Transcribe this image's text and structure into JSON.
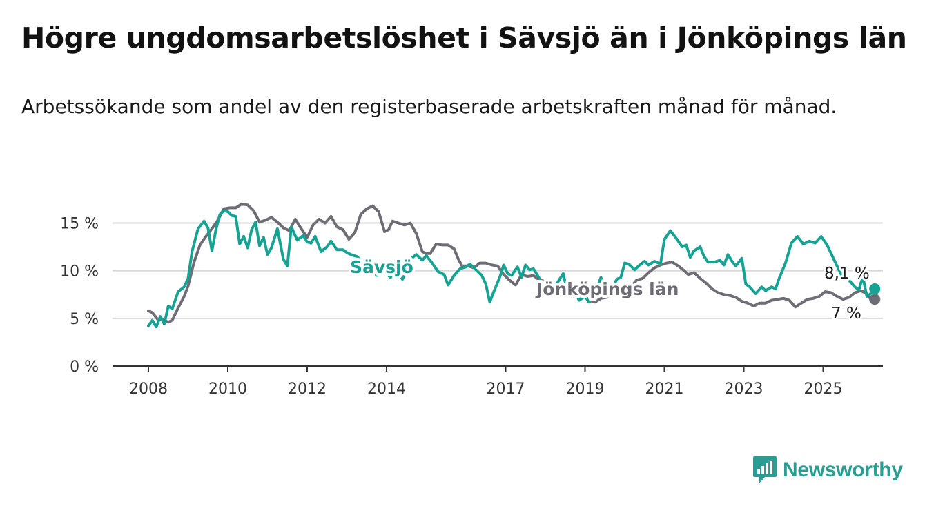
{
  "title": "Högre ungdomsarbetslöshet i Sävsjö än i Jönköpings län",
  "subtitle": "Arbetssökande som andel av den registerbaserade arbetskraften månad för månad.",
  "brand": {
    "name": "Newsworthy",
    "icon": "bar-chart-speech-bubble-icon",
    "color": "#2a9d92"
  },
  "chart_data": {
    "type": "line",
    "title": "Högre ungdomsarbetslöshet i Sävsjö än i Jönköpings län",
    "xlabel": "",
    "ylabel": "",
    "x_ticks": [
      "2008",
      "2010",
      "2012",
      "2014",
      "2017",
      "2019",
      "2021",
      "2023",
      "2025"
    ],
    "y_ticks": [
      "0 %",
      "5 %",
      "10 %",
      "15 %"
    ],
    "ylim": [
      0,
      18
    ],
    "xlim": [
      2007.2,
      2026.4
    ],
    "grid": true,
    "legend": "inline labels",
    "series": [
      {
        "name": "Sävsjö",
        "color": "#16a394",
        "end_label": "8,1 %",
        "points": [
          [
            2008,
            4.2
          ],
          [
            2008.1,
            4.8
          ],
          [
            2008.2,
            4.1
          ],
          [
            2008.3,
            5.2
          ],
          [
            2008.4,
            4.4
          ],
          [
            2008.5,
            6.3
          ],
          [
            2008.6,
            6.0
          ],
          [
            2008.75,
            7.8
          ],
          [
            2008.9,
            8.3
          ],
          [
            2009.0,
            9.2
          ],
          [
            2009.1,
            12.0
          ],
          [
            2009.25,
            14.4
          ],
          [
            2009.4,
            15.2
          ],
          [
            2009.5,
            14.5
          ],
          [
            2009.6,
            12.1
          ],
          [
            2009.7,
            14.3
          ],
          [
            2009.8,
            15.9
          ],
          [
            2009.9,
            16.3
          ],
          [
            2010.0,
            16.2
          ],
          [
            2010.1,
            15.8
          ],
          [
            2010.2,
            15.7
          ],
          [
            2010.3,
            12.8
          ],
          [
            2010.4,
            13.6
          ],
          [
            2010.5,
            12.4
          ],
          [
            2010.6,
            14.3
          ],
          [
            2010.7,
            15.1
          ],
          [
            2010.8,
            12.6
          ],
          [
            2010.9,
            13.5
          ],
          [
            2011.0,
            11.7
          ],
          [
            2011.1,
            12.4
          ],
          [
            2011.25,
            14.4
          ],
          [
            2011.4,
            11.2
          ],
          [
            2011.5,
            10.5
          ],
          [
            2011.6,
            14.6
          ],
          [
            2011.75,
            13.2
          ],
          [
            2011.9,
            13.7
          ],
          [
            2012.0,
            13.0
          ],
          [
            2012.1,
            12.9
          ],
          [
            2012.2,
            13.6
          ],
          [
            2012.35,
            12.0
          ],
          [
            2012.5,
            12.5
          ],
          [
            2012.6,
            13.1
          ],
          [
            2012.75,
            12.2
          ],
          [
            2012.9,
            12.2
          ],
          [
            2013.0,
            11.9
          ],
          [
            2013.1,
            11.7
          ],
          [
            2013.25,
            11.5
          ],
          [
            2013.4,
            10.9
          ],
          [
            2013.5,
            10.0
          ],
          [
            2013.6,
            10.7
          ],
          [
            2013.75,
            9.5
          ],
          [
            2013.9,
            9.8
          ],
          [
            2014.0,
            9.7
          ],
          [
            2014.1,
            9.3
          ],
          [
            2014.25,
            9.9
          ],
          [
            2014.4,
            9.1
          ],
          [
            2014.5,
            10.0
          ],
          [
            2014.6,
            11.2
          ],
          [
            2014.75,
            11.7
          ],
          [
            2014.9,
            11.1
          ],
          [
            2015.0,
            11.6
          ],
          [
            2015.15,
            10.8
          ],
          [
            2015.3,
            9.9
          ],
          [
            2015.45,
            9.6
          ],
          [
            2015.55,
            8.5
          ],
          [
            2015.7,
            9.5
          ],
          [
            2015.85,
            10.2
          ],
          [
            2016.0,
            10.4
          ],
          [
            2016.1,
            10.7
          ],
          [
            2016.25,
            10.1
          ],
          [
            2016.4,
            9.5
          ],
          [
            2016.5,
            8.6
          ],
          [
            2016.6,
            6.7
          ],
          [
            2016.7,
            7.8
          ],
          [
            2016.85,
            9.3
          ],
          [
            2016.95,
            10.6
          ],
          [
            2017.05,
            9.7
          ],
          [
            2017.15,
            9.5
          ],
          [
            2017.3,
            10.4
          ],
          [
            2017.4,
            9.3
          ],
          [
            2017.5,
            10.6
          ],
          [
            2017.6,
            10.1
          ],
          [
            2017.7,
            10.2
          ],
          [
            2017.85,
            9.2
          ],
          [
            2017.95,
            7.7
          ],
          [
            2018.05,
            7.5
          ],
          [
            2018.15,
            8.4
          ],
          [
            2018.3,
            8.7
          ],
          [
            2018.45,
            9.7
          ],
          [
            2018.55,
            7.9
          ],
          [
            2018.65,
            7.3
          ],
          [
            2018.75,
            7.8
          ],
          [
            2018.85,
            6.9
          ],
          [
            2019.0,
            7.3
          ],
          [
            2019.1,
            6.7
          ],
          [
            2019.2,
            7.0
          ],
          [
            2019.4,
            9.3
          ],
          [
            2019.5,
            8.3
          ],
          [
            2019.6,
            8.4
          ],
          [
            2019.7,
            8.2
          ],
          [
            2019.8,
            9.1
          ],
          [
            2019.9,
            9.3
          ],
          [
            2020.0,
            10.8
          ],
          [
            2020.1,
            10.7
          ],
          [
            2020.25,
            10.1
          ],
          [
            2020.35,
            10.5
          ],
          [
            2020.5,
            11.0
          ],
          [
            2020.6,
            10.6
          ],
          [
            2020.75,
            11.0
          ],
          [
            2020.9,
            10.7
          ],
          [
            2021.0,
            13.3
          ],
          [
            2021.15,
            14.2
          ],
          [
            2021.3,
            13.4
          ],
          [
            2021.45,
            12.5
          ],
          [
            2021.55,
            12.7
          ],
          [
            2021.65,
            11.4
          ],
          [
            2021.75,
            12.1
          ],
          [
            2021.9,
            12.5
          ],
          [
            2022.0,
            11.5
          ],
          [
            2022.1,
            10.9
          ],
          [
            2022.25,
            10.9
          ],
          [
            2022.4,
            11.1
          ],
          [
            2022.5,
            10.6
          ],
          [
            2022.6,
            11.7
          ],
          [
            2022.7,
            11.0
          ],
          [
            2022.8,
            10.5
          ],
          [
            2022.95,
            11.3
          ],
          [
            2023.05,
            8.6
          ],
          [
            2023.15,
            8.3
          ],
          [
            2023.3,
            7.6
          ],
          [
            2023.45,
            8.3
          ],
          [
            2023.55,
            7.9
          ],
          [
            2023.7,
            8.3
          ],
          [
            2023.8,
            8.1
          ],
          [
            2023.9,
            9.3
          ],
          [
            2024.05,
            10.8
          ],
          [
            2024.2,
            12.9
          ],
          [
            2024.35,
            13.6
          ],
          [
            2024.5,
            12.8
          ],
          [
            2024.65,
            13.1
          ],
          [
            2024.8,
            12.9
          ],
          [
            2024.95,
            13.6
          ],
          [
            2025.1,
            12.7
          ],
          [
            2025.2,
            11.8
          ],
          [
            2025.35,
            10.5
          ],
          [
            2025.5,
            9.2
          ],
          [
            2025.65,
            9.0
          ],
          [
            2025.8,
            8.3
          ],
          [
            2025.9,
            8.0
          ],
          [
            2026.0,
            9.4
          ],
          [
            2026.1,
            7.3
          ],
          [
            2026.2,
            7.6
          ],
          [
            2026.3,
            8.1
          ]
        ]
      },
      {
        "name": "Jönköpings län",
        "color": "#6e6c74",
        "end_label": "7 %",
        "points": [
          [
            2008,
            5.8
          ],
          [
            2008.1,
            5.6
          ],
          [
            2008.25,
            4.8
          ],
          [
            2008.35,
            4.9
          ],
          [
            2008.5,
            4.6
          ],
          [
            2008.6,
            4.8
          ],
          [
            2008.75,
            6.1
          ],
          [
            2008.9,
            7.3
          ],
          [
            2009.0,
            8.4
          ],
          [
            2009.15,
            10.9
          ],
          [
            2009.3,
            12.7
          ],
          [
            2009.45,
            13.6
          ],
          [
            2009.6,
            14.4
          ],
          [
            2009.75,
            15.3
          ],
          [
            2009.9,
            16.5
          ],
          [
            2010.05,
            16.6
          ],
          [
            2010.2,
            16.6
          ],
          [
            2010.35,
            17.0
          ],
          [
            2010.5,
            16.9
          ],
          [
            2010.65,
            16.3
          ],
          [
            2010.8,
            15.1
          ],
          [
            2010.95,
            15.3
          ],
          [
            2011.1,
            15.6
          ],
          [
            2011.25,
            15.1
          ],
          [
            2011.4,
            14.5
          ],
          [
            2011.55,
            14.2
          ],
          [
            2011.7,
            15.4
          ],
          [
            2011.85,
            14.4
          ],
          [
            2012.0,
            13.5
          ],
          [
            2012.15,
            14.8
          ],
          [
            2012.3,
            15.4
          ],
          [
            2012.45,
            15.0
          ],
          [
            2012.6,
            15.7
          ],
          [
            2012.75,
            14.6
          ],
          [
            2012.9,
            14.3
          ],
          [
            2013.05,
            13.3
          ],
          [
            2013.2,
            14.0
          ],
          [
            2013.35,
            15.9
          ],
          [
            2013.5,
            16.5
          ],
          [
            2013.65,
            16.8
          ],
          [
            2013.8,
            16.2
          ],
          [
            2013.95,
            14.1
          ],
          [
            2014.05,
            14.3
          ],
          [
            2014.15,
            15.2
          ],
          [
            2014.3,
            15.0
          ],
          [
            2014.45,
            14.8
          ],
          [
            2014.6,
            15.0
          ],
          [
            2014.75,
            13.9
          ],
          [
            2014.9,
            12.0
          ],
          [
            2015.0,
            11.8
          ],
          [
            2015.1,
            11.8
          ],
          [
            2015.25,
            12.8
          ],
          [
            2015.4,
            12.7
          ],
          [
            2015.55,
            12.7
          ],
          [
            2015.7,
            12.3
          ],
          [
            2015.8,
            11.3
          ],
          [
            2015.9,
            10.5
          ],
          [
            2016.05,
            10.5
          ],
          [
            2016.2,
            10.3
          ],
          [
            2016.35,
            10.8
          ],
          [
            2016.5,
            10.8
          ],
          [
            2016.65,
            10.6
          ],
          [
            2016.8,
            10.5
          ],
          [
            2016.95,
            9.6
          ],
          [
            2017.1,
            9.0
          ],
          [
            2017.25,
            8.5
          ],
          [
            2017.4,
            9.6
          ],
          [
            2017.55,
            9.4
          ],
          [
            2017.7,
            9.5
          ],
          [
            2017.85,
            9.0
          ],
          [
            2018.0,
            8.9
          ],
          [
            2018.15,
            8.0
          ],
          [
            2018.3,
            7.9
          ],
          [
            2018.45,
            7.6
          ],
          [
            2018.6,
            7.5
          ],
          [
            2018.75,
            7.3
          ],
          [
            2018.85,
            7.2
          ],
          [
            2019.0,
            7.3
          ],
          [
            2019.1,
            6.9
          ],
          [
            2019.25,
            6.7
          ],
          [
            2019.4,
            7.1
          ],
          [
            2019.55,
            7.2
          ],
          [
            2019.7,
            7.5
          ],
          [
            2019.85,
            8.0
          ],
          [
            2020.0,
            8.4
          ],
          [
            2020.15,
            8.3
          ],
          [
            2020.3,
            9.0
          ],
          [
            2020.45,
            9.2
          ],
          [
            2020.6,
            9.8
          ],
          [
            2020.75,
            10.3
          ],
          [
            2020.9,
            10.6
          ],
          [
            2021.05,
            10.8
          ],
          [
            2021.2,
            10.9
          ],
          [
            2021.35,
            10.5
          ],
          [
            2021.5,
            10.0
          ],
          [
            2021.6,
            9.6
          ],
          [
            2021.75,
            9.8
          ],
          [
            2021.9,
            9.2
          ],
          [
            2022.05,
            8.7
          ],
          [
            2022.2,
            8.1
          ],
          [
            2022.35,
            7.7
          ],
          [
            2022.5,
            7.5
          ],
          [
            2022.65,
            7.4
          ],
          [
            2022.8,
            7.2
          ],
          [
            2022.95,
            6.8
          ],
          [
            2023.1,
            6.6
          ],
          [
            2023.25,
            6.3
          ],
          [
            2023.4,
            6.6
          ],
          [
            2023.55,
            6.6
          ],
          [
            2023.7,
            6.9
          ],
          [
            2023.85,
            7.0
          ],
          [
            2024.0,
            7.1
          ],
          [
            2024.15,
            6.9
          ],
          [
            2024.3,
            6.2
          ],
          [
            2024.45,
            6.6
          ],
          [
            2024.6,
            7.0
          ],
          [
            2024.75,
            7.1
          ],
          [
            2024.9,
            7.3
          ],
          [
            2025.05,
            7.8
          ],
          [
            2025.2,
            7.7
          ],
          [
            2025.35,
            7.3
          ],
          [
            2025.5,
            7.0
          ],
          [
            2025.65,
            7.2
          ],
          [
            2025.8,
            7.7
          ],
          [
            2025.95,
            7.9
          ],
          [
            2026.1,
            7.6
          ],
          [
            2026.2,
            7.0
          ],
          [
            2026.3,
            7.0
          ]
        ]
      }
    ]
  }
}
